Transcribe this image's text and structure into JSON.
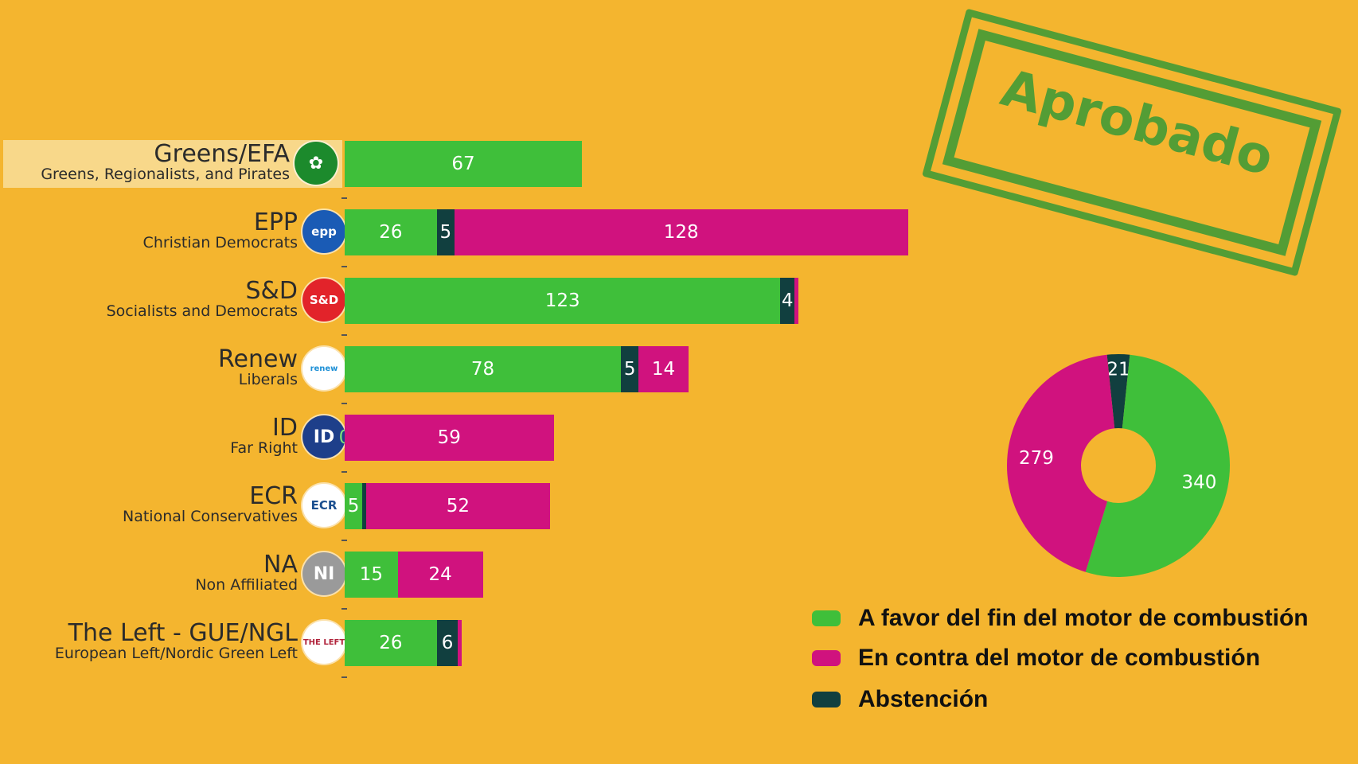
{
  "colors": {
    "favor": "#3fbf3a",
    "contra": "#d0127e",
    "abstencion": "#113f3f",
    "background": "#f4b52f",
    "stamp": "#3d9a36"
  },
  "stamp": {
    "text": "Aprobado"
  },
  "chart_data": [
    {
      "type": "bar",
      "orientation": "horizontal",
      "stacked": true,
      "categories": [
        "Greens/EFA",
        "EPP",
        "S&D",
        "Renew",
        "ID",
        "ECR",
        "NA",
        "The Left - GUE/NGL"
      ],
      "subtitles": [
        "Greens, Regionalists, and Pirates",
        "Christian Democrats",
        "Socialists and Democrats",
        "Liberals",
        "Far Right",
        "National Conservatives",
        "Non Affiliated",
        "European Left/Nordic Green Left"
      ],
      "logos": [
        {
          "icon": "greens-efa-logo-icon",
          "text": "✿",
          "bg": "#1c8a2c",
          "fg": "#ffffff"
        },
        {
          "icon": "epp-logo-icon",
          "text": "epp",
          "bg": "#1a5bb5",
          "fg": "#ffffff"
        },
        {
          "icon": "sd-logo-icon",
          "text": "S&D",
          "bg": "#e2232a",
          "fg": "#ffffff"
        },
        {
          "icon": "renew-europe-logo-icon",
          "text": "renew",
          "bg": "#ffffff",
          "fg": "#1e90d6"
        },
        {
          "icon": "id-logo-icon",
          "text": "ID",
          "bg": "#1e3f8a",
          "fg": "#ffffff"
        },
        {
          "icon": "ecr-logo-icon",
          "text": "ECR",
          "bg": "#ffffff",
          "fg": "#1b4f8f"
        },
        {
          "icon": "na-logo-icon",
          "text": "NI",
          "bg": "#9a9a9a",
          "fg": "#ffffff"
        },
        {
          "icon": "the-left-logo-icon",
          "text": "THE LEFT",
          "bg": "#ffffff",
          "fg": "#b0233b"
        }
      ],
      "highlighted": "Greens/EFA",
      "series": [
        {
          "name": "A favor del fin del motor de combustión",
          "values": [
            67,
            26,
            123,
            78,
            0,
            5,
            15,
            26
          ]
        },
        {
          "name": "Abstención",
          "values": [
            0,
            5,
            4,
            5,
            0,
            1,
            0,
            6
          ]
        },
        {
          "name": "En contra del motor de combustión",
          "values": [
            0,
            128,
            1,
            14,
            59,
            52,
            24,
            1
          ]
        }
      ],
      "labels": [
        [
          "67",
          "",
          ""
        ],
        [
          "26",
          "5",
          "128"
        ],
        [
          "123",
          "4",
          ""
        ],
        [
          "78",
          "5",
          "14"
        ],
        [
          "0",
          "",
          "59"
        ],
        [
          "5",
          "",
          "52"
        ],
        [
          "15",
          "",
          "24"
        ],
        [
          "26",
          "6",
          ""
        ]
      ],
      "grid": false
    },
    {
      "type": "pie",
      "donut": true,
      "slices": [
        {
          "name": "A favor del fin del motor de combustión",
          "value": 340,
          "label": "340"
        },
        {
          "name": "En contra del motor de combustión",
          "value": 279,
          "label": "279"
        },
        {
          "name": "Abstención",
          "value": 21,
          "label": "21"
        }
      ]
    }
  ],
  "legend": {
    "items": [
      {
        "label": "A favor del fin del motor de combustión",
        "color": "#3fbf3a"
      },
      {
        "label": "En contra del motor de combustión",
        "color": "#d0127e"
      },
      {
        "label": "Abstención",
        "color": "#113f3f"
      }
    ]
  }
}
